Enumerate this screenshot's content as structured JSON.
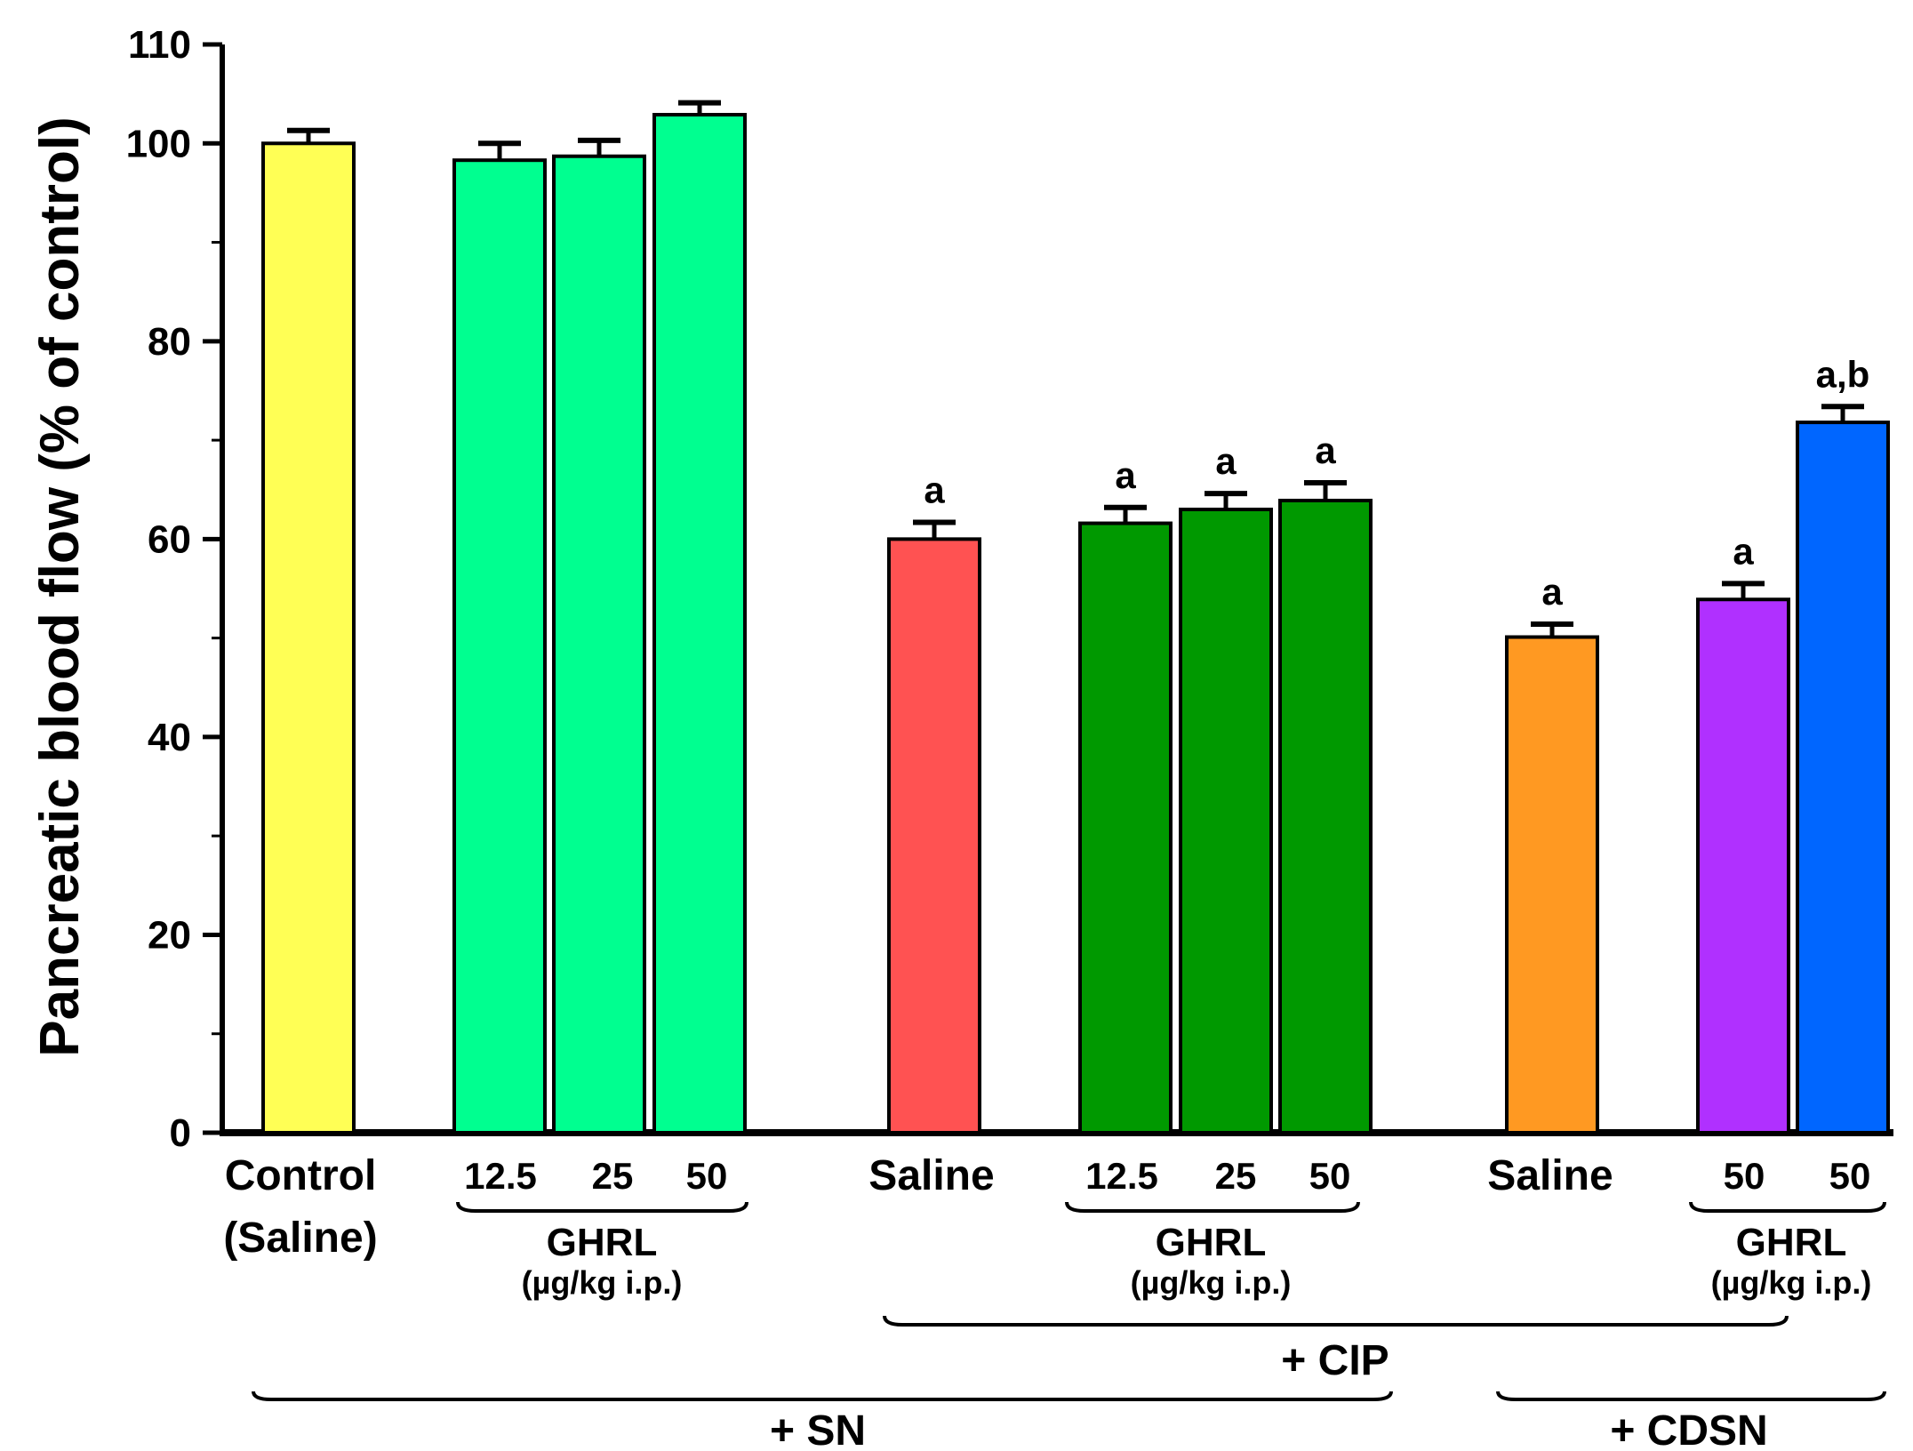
{
  "chart_data": {
    "type": "bar",
    "ylabel": "Pancreatic blood flow (% of control)",
    "ylim": [
      0,
      110
    ],
    "yticks": [
      0,
      20,
      40,
      60,
      80,
      100,
      110
    ],
    "bars": [
      {
        "label": "Control (Saline)",
        "value": 100,
        "error": 1.3,
        "color": "#ffff55",
        "sig": ""
      },
      {
        "label": "12.5",
        "value": 98.3,
        "error": 1.7,
        "color": "#00ff90",
        "sig": ""
      },
      {
        "label": "25",
        "value": 98.7,
        "error": 1.6,
        "color": "#00ff90",
        "sig": ""
      },
      {
        "label": "50",
        "value": 102.9,
        "error": 1.2,
        "color": "#00ff90",
        "sig": ""
      },
      {
        "label": "Saline",
        "value": 60,
        "error": 1.7,
        "color": "#ff5252",
        "sig": "a"
      },
      {
        "label": "12.5",
        "value": 61.6,
        "error": 1.6,
        "color": "#009900",
        "sig": "a"
      },
      {
        "label": "25",
        "value": 63,
        "error": 1.6,
        "color": "#009900",
        "sig": "a"
      },
      {
        "label": "50",
        "value": 63.9,
        "error": 1.8,
        "color": "#009900",
        "sig": "a"
      },
      {
        "label": "Saline",
        "value": 50.1,
        "error": 1.3,
        "color": "#ff9922",
        "sig": "a"
      },
      {
        "label": "50",
        "value": 53.9,
        "error": 1.6,
        "color": "#b030ff",
        "sig": "a"
      },
      {
        "label": "50",
        "value": 71.8,
        "error": 1.6,
        "color": "#0066ff",
        "sig": "a,b"
      }
    ],
    "category_labels": {
      "control_line1": "Control",
      "control_line2": "(Saline)",
      "saline": "Saline"
    },
    "groups": [
      {
        "name": "GHRL",
        "unit": "(µg/kg i.p.)"
      },
      {
        "name": "GHRL",
        "unit": "(µg/kg i.p.)"
      },
      {
        "name": "GHRL",
        "unit": "(µg/kg i.p.)"
      }
    ],
    "brackets": {
      "cip": "+ CIP",
      "sn": "+ SN",
      "cdsn": "+ CDSN"
    }
  }
}
